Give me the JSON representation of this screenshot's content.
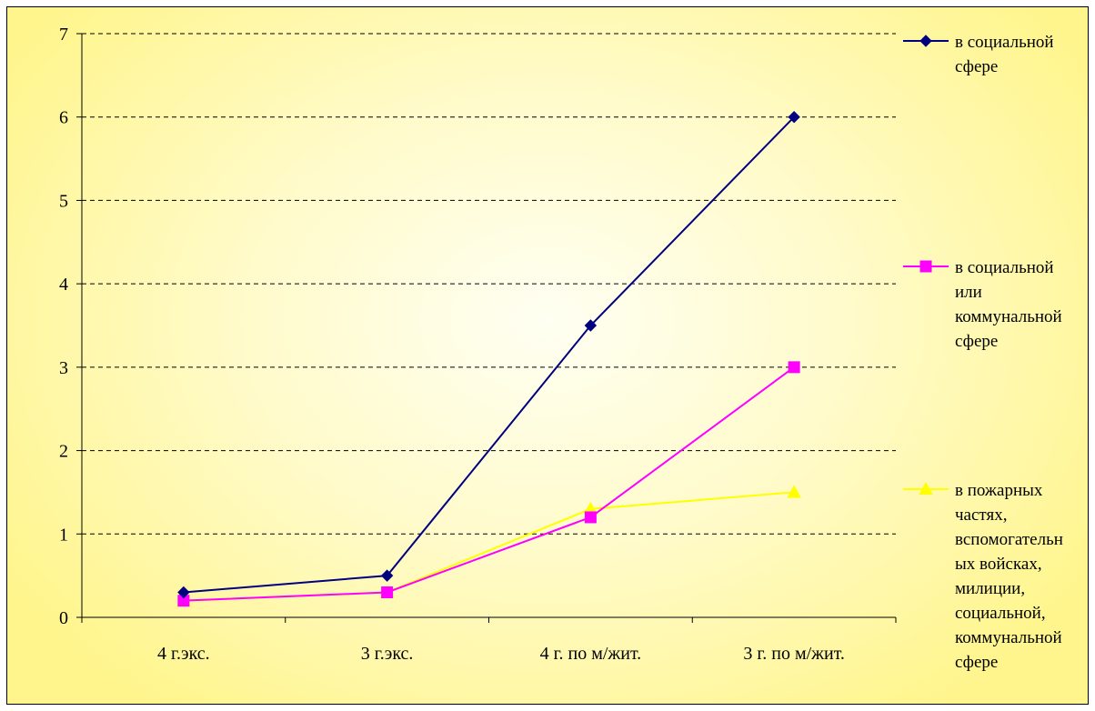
{
  "chart_data": {
    "type": "line",
    "title": "",
    "xlabel": "",
    "ylabel": "",
    "categories": [
      "4 г.экс.",
      "3 г.экс.",
      "4 г. по м/жит.",
      "3 г. по м/жит."
    ],
    "ylim": [
      0,
      7
    ],
    "yticks": [
      0,
      1,
      2,
      3,
      4,
      5,
      6,
      7
    ],
    "grid": true,
    "legend_position": "right",
    "series": [
      {
        "name": "в социальной сфере",
        "legend_lines": [
          "в социальной",
          "сфере"
        ],
        "values": [
          0.3,
          0.5,
          3.5,
          6.0
        ],
        "color": "#000080",
        "marker": "diamond"
      },
      {
        "name": "в социальной или коммунальной сфере",
        "legend_lines": [
          "в социальной",
          "или",
          "коммунальной",
          "сфере"
        ],
        "values": [
          0.2,
          0.3,
          1.2,
          3.0
        ],
        "color": "#ff00ff",
        "marker": "square"
      },
      {
        "name": "в пожарных частях, вспомогательных войсках, милиции, социальной, коммунальной сфере",
        "legend_lines": [
          "в пожарных",
          "частях,",
          "вспомогательн",
          "ых войсках,",
          "милиции,",
          "социальной,",
          "коммунальной",
          "сфере"
        ],
        "values": [
          0.2,
          0.3,
          1.3,
          1.5
        ],
        "color": "#ffff00",
        "marker": "triangle"
      }
    ]
  }
}
